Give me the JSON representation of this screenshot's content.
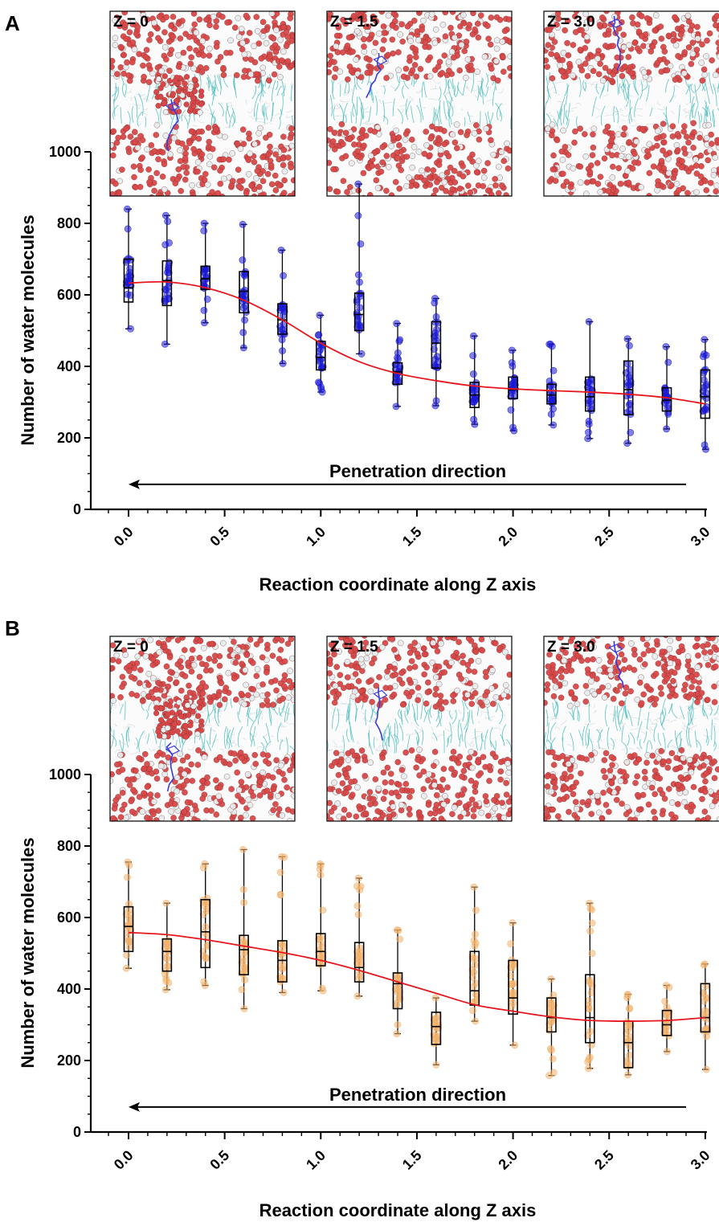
{
  "colors": {
    "blue_points": "#1a1ad6",
    "orange_points": "#f2b26b",
    "fit_line": "#e8161c",
    "water_red": "#d94848",
    "water_white": "#e6eef0",
    "lipid_cyan": "#3cb8b8",
    "peptide_blue": "#3a3adf"
  },
  "chart_data": [
    {
      "panel": "A",
      "type": "box",
      "xlabel": "Reaction coordinate along Z axis",
      "ylabel": "Number of water molecules",
      "xlim": [
        -0.15,
        3.0
      ],
      "ylim": [
        0,
        1000
      ],
      "y_ticks": [
        0,
        200,
        400,
        600,
        800,
        1000
      ],
      "x_ticks": [
        "0.0",
        "0.5",
        "1.0",
        "1.5",
        "2.0",
        "2.5",
        "3.0"
      ],
      "x_tick_values": [
        0.0,
        0.5,
        1.0,
        1.5,
        2.0,
        2.5,
        3.0
      ],
      "annotation": "Penetration direction",
      "arrow": {
        "from_x": 2.9,
        "to_x": 0.0,
        "y": 70
      },
      "point_color": "blue",
      "insets": [
        {
          "label": "Z = 0",
          "peptide_depth": 0.45
        },
        {
          "label": "Z = 1.5",
          "peptide_depth": 0.2
        },
        {
          "label": "Z = 3.0",
          "peptide_depth": 0.0
        }
      ],
      "x": [
        0.0,
        0.2,
        0.4,
        0.6,
        0.8,
        1.0,
        1.2,
        1.4,
        1.6,
        1.8,
        2.0,
        2.2,
        2.4,
        2.6,
        2.8,
        3.0
      ],
      "boxes": [
        {
          "x": 0.0,
          "min": 505,
          "q1": 580,
          "median": 620,
          "q3": 700,
          "max": 840
        },
        {
          "x": 0.2,
          "min": 462,
          "q1": 570,
          "median": 640,
          "q3": 695,
          "max": 822
        },
        {
          "x": 0.4,
          "min": 522,
          "q1": 615,
          "median": 645,
          "q3": 680,
          "max": 800
        },
        {
          "x": 0.6,
          "min": 452,
          "q1": 550,
          "median": 610,
          "q3": 665,
          "max": 797
        },
        {
          "x": 0.8,
          "min": 408,
          "q1": 490,
          "median": 530,
          "q3": 575,
          "max": 725
        },
        {
          "x": 1.0,
          "min": 328,
          "q1": 390,
          "median": 425,
          "q3": 470,
          "max": 543
        },
        {
          "x": 1.2,
          "min": 435,
          "q1": 500,
          "median": 545,
          "q3": 605,
          "max": 910
        },
        {
          "x": 1.4,
          "min": 288,
          "q1": 350,
          "median": 385,
          "q3": 410,
          "max": 520
        },
        {
          "x": 1.6,
          "min": 290,
          "q1": 395,
          "median": 465,
          "q3": 525,
          "max": 590
        },
        {
          "x": 1.8,
          "min": 238,
          "q1": 285,
          "median": 320,
          "q3": 355,
          "max": 485
        },
        {
          "x": 2.0,
          "min": 220,
          "q1": 310,
          "median": 335,
          "q3": 370,
          "max": 445
        },
        {
          "x": 2.2,
          "min": 236,
          "q1": 295,
          "median": 320,
          "q3": 350,
          "max": 462
        },
        {
          "x": 2.4,
          "min": 198,
          "q1": 275,
          "median": 315,
          "q3": 370,
          "max": 525
        },
        {
          "x": 2.6,
          "min": 185,
          "q1": 265,
          "median": 335,
          "q3": 415,
          "max": 477
        },
        {
          "x": 2.8,
          "min": 225,
          "q1": 275,
          "median": 305,
          "q3": 340,
          "max": 455
        },
        {
          "x": 3.0,
          "min": 168,
          "q1": 255,
          "median": 315,
          "q3": 390,
          "max": 475
        }
      ],
      "fit": {
        "x": [
          0.0,
          0.2,
          0.4,
          0.6,
          0.8,
          1.0,
          1.2,
          1.4,
          1.6,
          1.8,
          2.0,
          2.2,
          2.4,
          2.6,
          2.8,
          3.0
        ],
        "y": [
          633,
          636,
          620,
          585,
          530,
          465,
          413,
          380,
          360,
          345,
          337,
          332,
          328,
          322,
          312,
          295
        ]
      }
    },
    {
      "panel": "B",
      "type": "box",
      "xlabel": "Reaction coordinate along Z axis",
      "ylabel": "Number of water molecules",
      "xlim": [
        -0.15,
        3.0
      ],
      "ylim": [
        0,
        1000
      ],
      "y_ticks": [
        0,
        200,
        400,
        600,
        800,
        1000
      ],
      "x_ticks": [
        "0.0",
        "0.5",
        "1.0",
        "1.5",
        "2.0",
        "2.5",
        "3.0"
      ],
      "x_tick_values": [
        0.0,
        0.5,
        1.0,
        1.5,
        2.0,
        2.5,
        3.0
      ],
      "annotation": "Penetration direction",
      "arrow": {
        "from_x": 2.9,
        "to_x": 0.0,
        "y": 70
      },
      "point_color": "orange",
      "insets": [
        {
          "label": "Z = 0",
          "peptide_depth": 0.55
        },
        {
          "label": "Z = 1.5",
          "peptide_depth": 0.25
        },
        {
          "label": "Z = 3.0",
          "peptide_depth": 0.0
        }
      ],
      "x": [
        0.0,
        0.2,
        0.4,
        0.6,
        0.8,
        1.0,
        1.2,
        1.4,
        1.6,
        1.8,
        2.0,
        2.2,
        2.4,
        2.6,
        2.8,
        3.0
      ],
      "boxes": [
        {
          "x": 0.0,
          "min": 458,
          "q1": 505,
          "median": 575,
          "q3": 630,
          "max": 755
        },
        {
          "x": 0.2,
          "min": 398,
          "q1": 450,
          "median": 505,
          "q3": 540,
          "max": 640
        },
        {
          "x": 0.4,
          "min": 410,
          "q1": 460,
          "median": 560,
          "q3": 650,
          "max": 750
        },
        {
          "x": 0.6,
          "min": 345,
          "q1": 440,
          "median": 510,
          "q3": 550,
          "max": 790
        },
        {
          "x": 0.8,
          "min": 390,
          "q1": 420,
          "median": 480,
          "q3": 535,
          "max": 770
        },
        {
          "x": 1.0,
          "min": 395,
          "q1": 465,
          "median": 505,
          "q3": 555,
          "max": 750
        },
        {
          "x": 1.2,
          "min": 380,
          "q1": 420,
          "median": 460,
          "q3": 530,
          "max": 710
        },
        {
          "x": 1.4,
          "min": 275,
          "q1": 345,
          "median": 415,
          "q3": 445,
          "max": 565
        },
        {
          "x": 1.6,
          "min": 188,
          "q1": 245,
          "median": 295,
          "q3": 335,
          "max": 375
        },
        {
          "x": 1.8,
          "min": 310,
          "q1": 355,
          "median": 395,
          "q3": 505,
          "max": 685
        },
        {
          "x": 2.0,
          "min": 243,
          "q1": 330,
          "median": 375,
          "q3": 480,
          "max": 585
        },
        {
          "x": 2.2,
          "min": 158,
          "q1": 280,
          "median": 320,
          "q3": 375,
          "max": 428
        },
        {
          "x": 2.4,
          "min": 178,
          "q1": 250,
          "median": 320,
          "q3": 440,
          "max": 640
        },
        {
          "x": 2.6,
          "min": 160,
          "q1": 180,
          "median": 250,
          "q3": 310,
          "max": 385
        },
        {
          "x": 2.8,
          "min": 225,
          "q1": 270,
          "median": 300,
          "q3": 340,
          "max": 410
        },
        {
          "x": 3.0,
          "min": 175,
          "q1": 280,
          "median": 320,
          "q3": 415,
          "max": 470
        }
      ],
      "fit": {
        "x": [
          0.0,
          0.2,
          0.4,
          0.6,
          0.8,
          1.0,
          1.2,
          1.4,
          1.6,
          1.8,
          2.0,
          2.2,
          2.4,
          2.6,
          2.8,
          3.0
        ],
        "y": [
          558,
          552,
          538,
          520,
          502,
          480,
          452,
          420,
          388,
          356,
          338,
          322,
          312,
          310,
          312,
          320
        ]
      }
    }
  ]
}
